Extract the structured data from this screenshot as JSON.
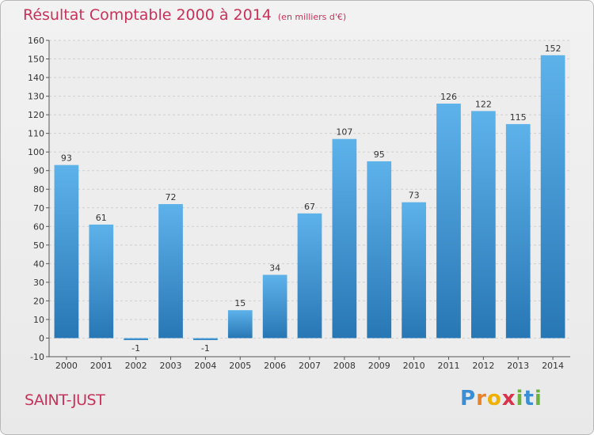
{
  "header": {
    "title": "Résultat Comptable 2000 à 2014",
    "subtitle": "(en milliers d'€)"
  },
  "footer": {
    "place": "SAINT-JUST",
    "logo": "Proxiti"
  },
  "colors": {
    "title": "#c8325a",
    "bar_light": "#5aaee8",
    "bar_dark": "#2a7ab8",
    "grid": "#d0d0d0"
  },
  "chart_data": {
    "type": "bar",
    "title": "Résultat Comptable 2000 à 2014",
    "subtitle": "(en milliers d'€)",
    "xlabel": "",
    "ylabel": "",
    "categories": [
      "2000",
      "2001",
      "2002",
      "2003",
      "2004",
      "2005",
      "2006",
      "2007",
      "2008",
      "2009",
      "2010",
      "2011",
      "2012",
      "2013",
      "2014"
    ],
    "values": [
      93,
      61,
      -1,
      72,
      -1,
      15,
      34,
      67,
      107,
      95,
      73,
      126,
      122,
      115,
      152
    ],
    "ylim": [
      -10,
      160
    ],
    "yticks": [
      -10,
      0,
      10,
      20,
      30,
      40,
      50,
      60,
      70,
      80,
      90,
      100,
      110,
      120,
      130,
      140,
      150,
      160
    ],
    "grid": true,
    "legend": "none"
  }
}
